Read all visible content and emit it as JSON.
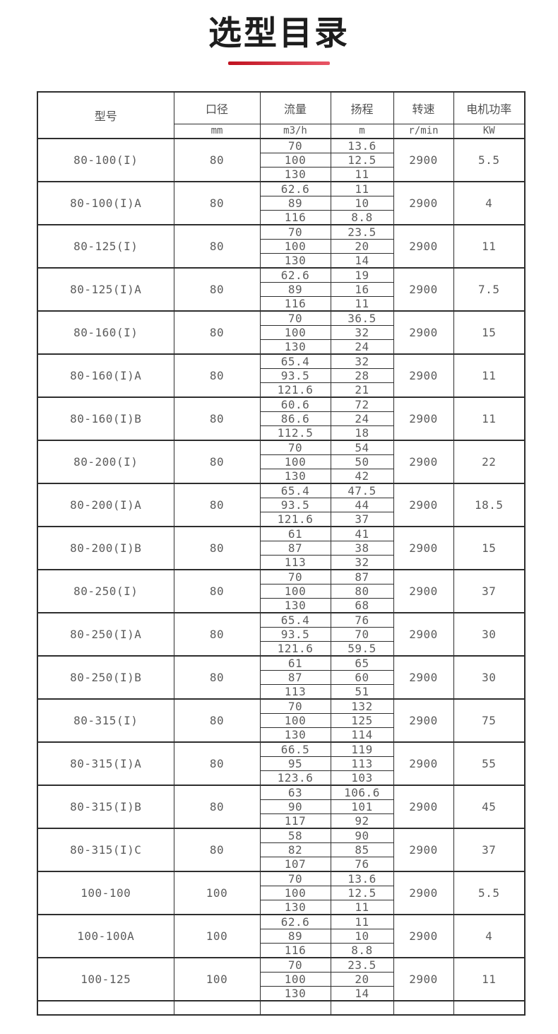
{
  "page": {
    "title": "选型目录"
  },
  "colors": {
    "title_text": "#1d1d1d",
    "underline_from": "#c01220",
    "underline_to": "#e85666",
    "table_border": "#2e2e2e",
    "cell_text": "#5c5c5c",
    "header_text": "#4f4f4f"
  },
  "table": {
    "headers": {
      "model": "型号",
      "diameter": "口径",
      "flow": "流量",
      "head": "扬程",
      "speed": "转速",
      "power": "电机功率"
    },
    "units": {
      "diameter": "mm",
      "flow": "m3/h",
      "head": "m",
      "speed": "r/min",
      "power": "KW"
    },
    "rows": [
      {
        "model": "80-100(I)",
        "diameter": "80",
        "points": [
          [
            "70",
            "13.6"
          ],
          [
            "100",
            "12.5"
          ],
          [
            "130",
            "11"
          ]
        ],
        "speed": "2900",
        "power": "5.5"
      },
      {
        "model": "80-100(I)A",
        "diameter": "80",
        "points": [
          [
            "62.6",
            "11"
          ],
          [
            "89",
            "10"
          ],
          [
            "116",
            "8.8"
          ]
        ],
        "speed": "2900",
        "power": "4"
      },
      {
        "model": "80-125(I)",
        "diameter": "80",
        "points": [
          [
            "70",
            "23.5"
          ],
          [
            "100",
            "20"
          ],
          [
            "130",
            "14"
          ]
        ],
        "speed": "2900",
        "power": "11"
      },
      {
        "model": "80-125(I)A",
        "diameter": "80",
        "points": [
          [
            "62.6",
            "19"
          ],
          [
            "89",
            "16"
          ],
          [
            "116",
            "11"
          ]
        ],
        "speed": "2900",
        "power": "7.5"
      },
      {
        "model": "80-160(I)",
        "diameter": "80",
        "points": [
          [
            "70",
            "36.5"
          ],
          [
            "100",
            "32"
          ],
          [
            "130",
            "24"
          ]
        ],
        "speed": "2900",
        "power": "15"
      },
      {
        "model": "80-160(I)A",
        "diameter": "80",
        "points": [
          [
            "65.4",
            "32"
          ],
          [
            "93.5",
            "28"
          ],
          [
            "121.6",
            "21"
          ]
        ],
        "speed": "2900",
        "power": "11"
      },
      {
        "model": "80-160(I)B",
        "diameter": "80",
        "points": [
          [
            "60.6",
            "72"
          ],
          [
            "86.6",
            "24"
          ],
          [
            "112.5",
            "18"
          ]
        ],
        "speed": "2900",
        "power": "11"
      },
      {
        "model": "80-200(I)",
        "diameter": "80",
        "points": [
          [
            "70",
            "54"
          ],
          [
            "100",
            "50"
          ],
          [
            "130",
            "42"
          ]
        ],
        "speed": "2900",
        "power": "22"
      },
      {
        "model": "80-200(I)A",
        "diameter": "80",
        "points": [
          [
            "65.4",
            "47.5"
          ],
          [
            "93.5",
            "44"
          ],
          [
            "121.6",
            "37"
          ]
        ],
        "speed": "2900",
        "power": "18.5"
      },
      {
        "model": "80-200(I)B",
        "diameter": "80",
        "points": [
          [
            "61",
            "41"
          ],
          [
            "87",
            "38"
          ],
          [
            "113",
            "32"
          ]
        ],
        "speed": "2900",
        "power": "15"
      },
      {
        "model": "80-250(I)",
        "diameter": "80",
        "points": [
          [
            "70",
            "87"
          ],
          [
            "100",
            "80"
          ],
          [
            "130",
            "68"
          ]
        ],
        "speed": "2900",
        "power": "37"
      },
      {
        "model": "80-250(I)A",
        "diameter": "80",
        "points": [
          [
            "65.4",
            "76"
          ],
          [
            "93.5",
            "70"
          ],
          [
            "121.6",
            "59.5"
          ]
        ],
        "speed": "2900",
        "power": "30"
      },
      {
        "model": "80-250(I)B",
        "diameter": "80",
        "points": [
          [
            "61",
            "65"
          ],
          [
            "87",
            "60"
          ],
          [
            "113",
            "51"
          ]
        ],
        "speed": "2900",
        "power": "30"
      },
      {
        "model": "80-315(I)",
        "diameter": "80",
        "points": [
          [
            "70",
            "132"
          ],
          [
            "100",
            "125"
          ],
          [
            "130",
            "114"
          ]
        ],
        "speed": "2900",
        "power": "75"
      },
      {
        "model": "80-315(I)A",
        "diameter": "80",
        "points": [
          [
            "66.5",
            "119"
          ],
          [
            "95",
            "113"
          ],
          [
            "123.6",
            "103"
          ]
        ],
        "speed": "2900",
        "power": "55"
      },
      {
        "model": "80-315(I)B",
        "diameter": "80",
        "points": [
          [
            "63",
            "106.6"
          ],
          [
            "90",
            "101"
          ],
          [
            "117",
            "92"
          ]
        ],
        "speed": "2900",
        "power": "45"
      },
      {
        "model": "80-315(I)C",
        "diameter": "80",
        "points": [
          [
            "58",
            "90"
          ],
          [
            "82",
            "85"
          ],
          [
            "107",
            "76"
          ]
        ],
        "speed": "2900",
        "power": "37"
      },
      {
        "model": "100-100",
        "diameter": "100",
        "points": [
          [
            "70",
            "13.6"
          ],
          [
            "100",
            "12.5"
          ],
          [
            "130",
            "11"
          ]
        ],
        "speed": "2900",
        "power": "5.5"
      },
      {
        "model": "100-100A",
        "diameter": "100",
        "points": [
          [
            "62.6",
            "11"
          ],
          [
            "89",
            "10"
          ],
          [
            "116",
            "8.8"
          ]
        ],
        "speed": "2900",
        "power": "4"
      },
      {
        "model": "100-125",
        "diameter": "100",
        "points": [
          [
            "70",
            "23.5"
          ],
          [
            "100",
            "20"
          ],
          [
            "130",
            "14"
          ]
        ],
        "speed": "2900",
        "power": "11"
      }
    ]
  }
}
